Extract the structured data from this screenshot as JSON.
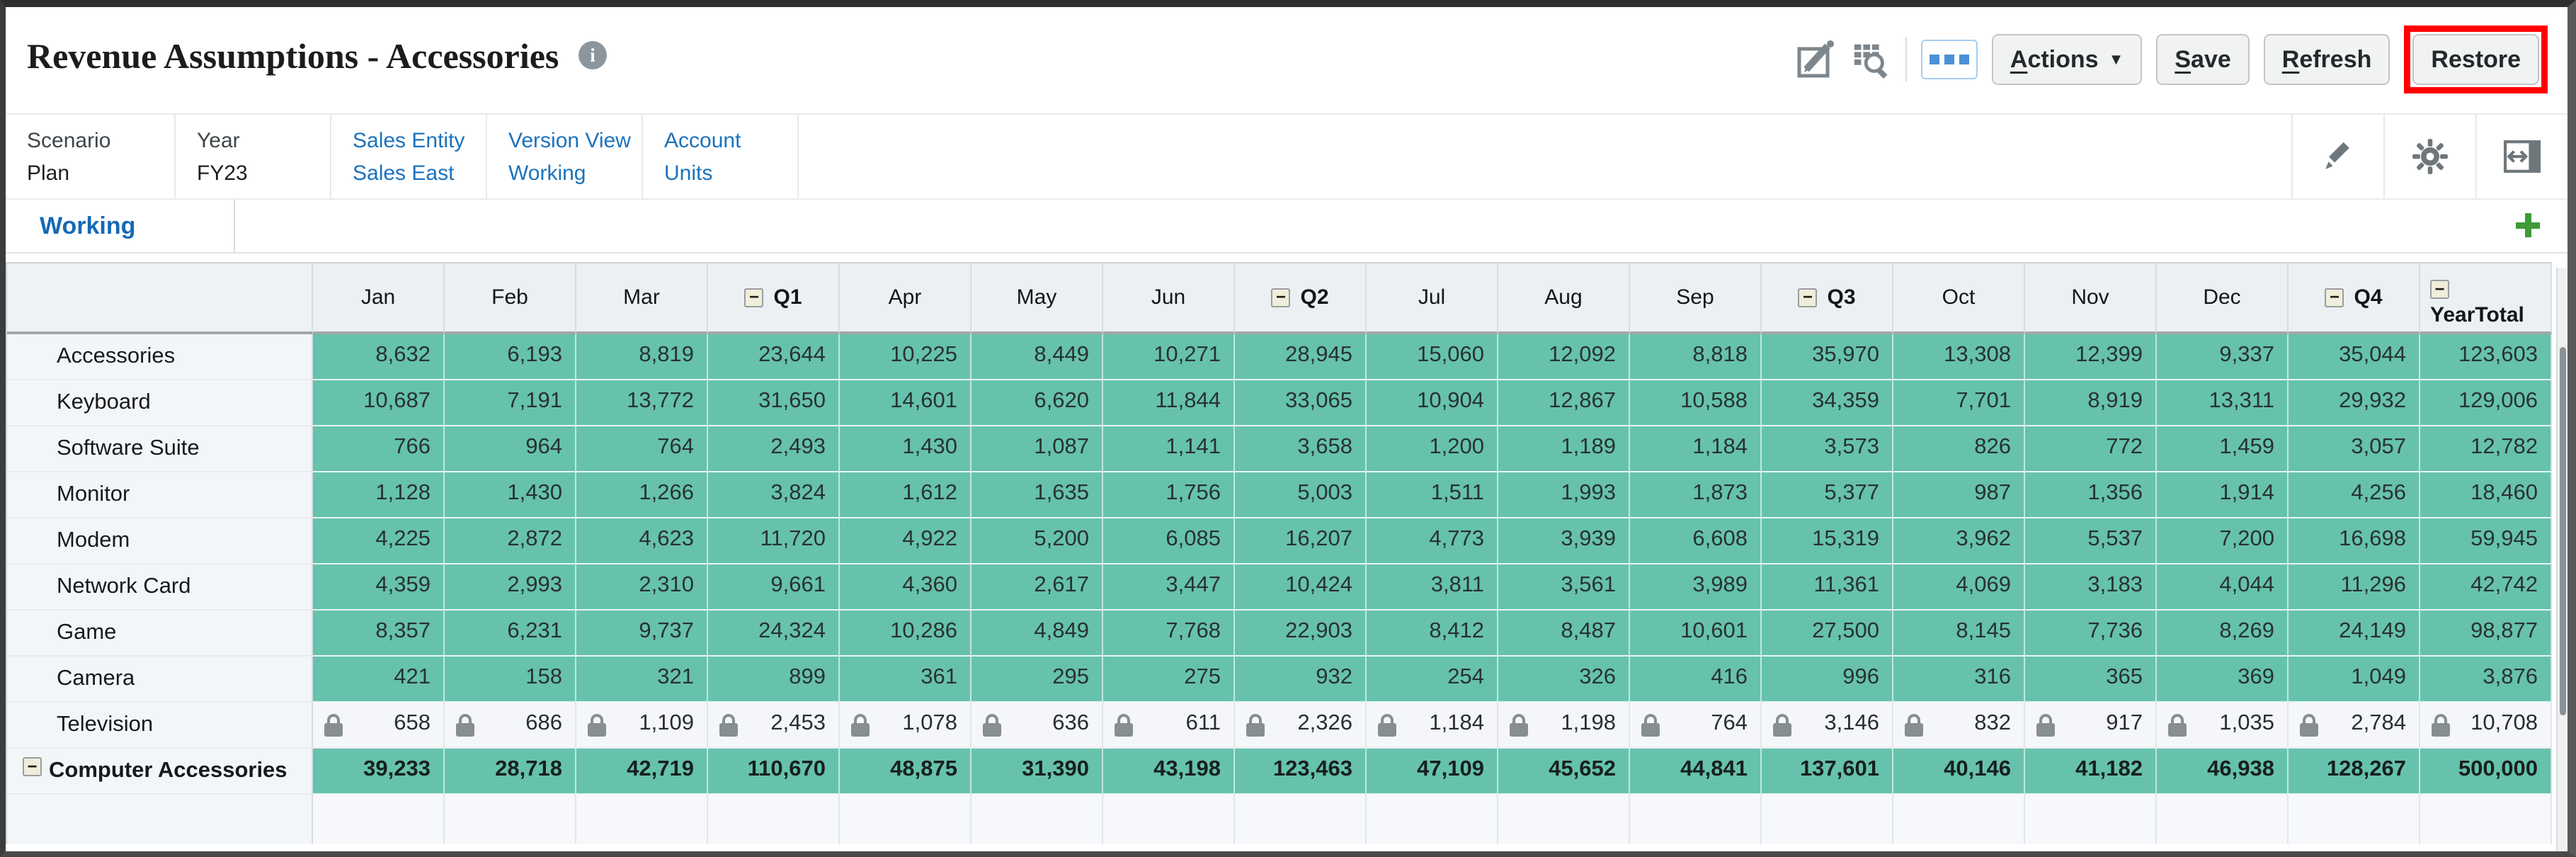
{
  "title": "Revenue Assumptions - Accessories",
  "toolbar": {
    "icons": [
      "edit-form-icon",
      "member-search-icon",
      "more-toolbar-icon"
    ],
    "buttons": [
      {
        "label": "Actions",
        "mnemonic": "A",
        "caret": true
      },
      {
        "label": "Save",
        "mnemonic": "S"
      },
      {
        "label": "Refresh",
        "mnemonic": "R"
      },
      {
        "label": "Restore",
        "annotated": true
      }
    ]
  },
  "pov": {
    "items": [
      {
        "dimension": "Scenario",
        "member": "Plan",
        "link": false
      },
      {
        "dimension": "Year",
        "member": "FY23",
        "link": false
      },
      {
        "dimension": "Sales Entity",
        "member": "Sales East",
        "link": true
      },
      {
        "dimension": "Version View",
        "member": "Working",
        "link": true
      },
      {
        "dimension": "Account",
        "member": "Units",
        "link": true
      }
    ],
    "tools": [
      "edit-pencil-icon",
      "settings-gear-icon",
      "collapse-panel-icon"
    ]
  },
  "tabs": [
    {
      "label": "Working"
    }
  ],
  "tab_bar": {
    "add_icon": "add-tab-icon"
  },
  "grid": {
    "columns": [
      {
        "label": "Jan"
      },
      {
        "label": "Feb"
      },
      {
        "label": "Mar"
      },
      {
        "label": "Q1",
        "collapsible": true
      },
      {
        "label": "Apr"
      },
      {
        "label": "May"
      },
      {
        "label": "Jun"
      },
      {
        "label": "Q2",
        "collapsible": true
      },
      {
        "label": "Jul"
      },
      {
        "label": "Aug"
      },
      {
        "label": "Sep"
      },
      {
        "label": "Q3",
        "collapsible": true
      },
      {
        "label": "Oct"
      },
      {
        "label": "Nov"
      },
      {
        "label": "Dec"
      },
      {
        "label": "Q4",
        "collapsible": true
      },
      {
        "label": "YearTotal",
        "collapsible": true,
        "stacked": true
      }
    ],
    "rows": [
      {
        "label": "Accessories",
        "values": [
          "8,632",
          "6,193",
          "8,819",
          "23,644",
          "10,225",
          "8,449",
          "10,271",
          "28,945",
          "15,060",
          "12,092",
          "8,818",
          "35,970",
          "13,308",
          "12,399",
          "9,337",
          "35,044",
          "123,603"
        ]
      },
      {
        "label": "Keyboard",
        "values": [
          "10,687",
          "7,191",
          "13,772",
          "31,650",
          "14,601",
          "6,620",
          "11,844",
          "33,065",
          "10,904",
          "12,867",
          "10,588",
          "34,359",
          "7,701",
          "8,919",
          "13,311",
          "29,932",
          "129,006"
        ]
      },
      {
        "label": "Software Suite",
        "values": [
          "766",
          "964",
          "764",
          "2,493",
          "1,430",
          "1,087",
          "1,141",
          "3,658",
          "1,200",
          "1,189",
          "1,184",
          "3,573",
          "826",
          "772",
          "1,459",
          "3,057",
          "12,782"
        ]
      },
      {
        "label": "Monitor",
        "values": [
          "1,128",
          "1,430",
          "1,266",
          "3,824",
          "1,612",
          "1,635",
          "1,756",
          "5,003",
          "1,511",
          "1,993",
          "1,873",
          "5,377",
          "987",
          "1,356",
          "1,914",
          "4,256",
          "18,460"
        ]
      },
      {
        "label": "Modem",
        "values": [
          "4,225",
          "2,872",
          "4,623",
          "11,720",
          "4,922",
          "5,200",
          "6,085",
          "16,207",
          "4,773",
          "3,939",
          "6,608",
          "15,319",
          "3,962",
          "5,537",
          "7,200",
          "16,698",
          "59,945"
        ]
      },
      {
        "label": "Network Card",
        "values": [
          "4,359",
          "2,993",
          "2,310",
          "9,661",
          "4,360",
          "2,617",
          "3,447",
          "10,424",
          "3,811",
          "3,561",
          "3,989",
          "11,361",
          "4,069",
          "3,183",
          "4,044",
          "11,296",
          "42,742"
        ]
      },
      {
        "label": "Game",
        "values": [
          "8,357",
          "6,231",
          "9,737",
          "24,324",
          "10,286",
          "4,849",
          "7,768",
          "22,903",
          "8,412",
          "8,487",
          "10,601",
          "27,500",
          "8,145",
          "7,736",
          "8,269",
          "24,149",
          "98,877"
        ]
      },
      {
        "label": "Camera",
        "values": [
          "421",
          "158",
          "321",
          "899",
          "361",
          "295",
          "275",
          "932",
          "254",
          "326",
          "416",
          "996",
          "316",
          "365",
          "369",
          "1,049",
          "3,876"
        ]
      },
      {
        "label": "Television",
        "locked": true,
        "values": [
          "658",
          "686",
          "1,109",
          "2,453",
          "1,078",
          "636",
          "611",
          "2,326",
          "1,184",
          "1,198",
          "764",
          "3,146",
          "832",
          "917",
          "1,035",
          "2,784",
          "10,708"
        ]
      },
      {
        "label": "Computer Accessories",
        "total": true,
        "collapse_icon": true,
        "values": [
          "39,233",
          "28,718",
          "42,719",
          "110,670",
          "48,875",
          "31,390",
          "43,198",
          "123,463",
          "47,109",
          "45,652",
          "44,841",
          "137,601",
          "40,146",
          "41,182",
          "46,938",
          "128,267",
          "500,000"
        ]
      }
    ]
  },
  "colors": {
    "cell_teal": "#66C2AD",
    "locked_cell": "#F4F6F9",
    "link_blue": "#1A72BD",
    "annotation_red": "#FF0000",
    "add_green": "#3F9A38"
  }
}
